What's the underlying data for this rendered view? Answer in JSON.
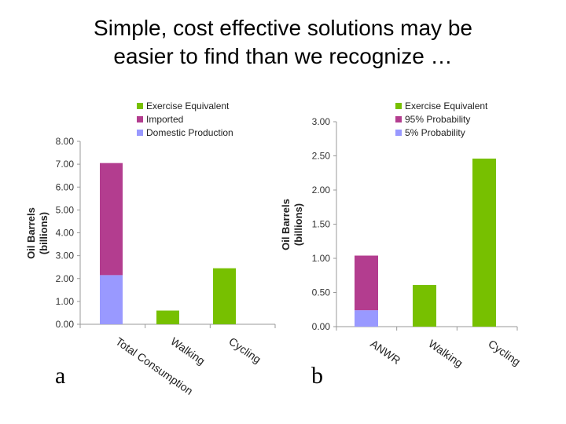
{
  "slide": {
    "title_line1": "Simple, cost effective solutions may be",
    "title_line2": "easier to find than we recognize …",
    "label_a": "a",
    "label_b": "b"
  },
  "chart_data": [
    {
      "type": "bar",
      "stacked": true,
      "ylabel_line1": "Oil Barrels",
      "ylabel_line2": "(billions)",
      "ylim": [
        0,
        8
      ],
      "yticks": [
        "0.00",
        "1.00",
        "2.00",
        "3.00",
        "4.00",
        "5.00",
        "6.00",
        "7.00",
        "8.00"
      ],
      "categories": [
        "Total Consumption",
        "Walking",
        "Cycling"
      ],
      "series": [
        {
          "name": "Domestic Production",
          "color": "#9999ff",
          "values": [
            2.15,
            0,
            0
          ]
        },
        {
          "name": "Imported",
          "color": "#b33d8f",
          "values": [
            4.9,
            0,
            0
          ]
        },
        {
          "name": "Exercise Equivalent",
          "color": "#77c000",
          "values": [
            0,
            0.6,
            2.45
          ]
        }
      ],
      "legend": [
        "Exercise Equivalent",
        "Imported",
        "Domestic Production"
      ],
      "legend_position": "top-right",
      "grid": false
    },
    {
      "type": "bar",
      "stacked": true,
      "ylabel_line1": "Oil Barrels",
      "ylabel_line2": "(billions)",
      "ylim": [
        0,
        3
      ],
      "yticks": [
        "0.00",
        "0.50",
        "1.00",
        "1.50",
        "2.00",
        "2.50",
        "3.00"
      ],
      "categories": [
        "ANWR",
        "Walking",
        "Cycling"
      ],
      "series": [
        {
          "name": "5% Probability",
          "color": "#9999ff",
          "values": [
            0.24,
            0,
            0
          ]
        },
        {
          "name": "95% Probability",
          "color": "#b33d8f",
          "values": [
            0.8,
            0,
            0
          ]
        },
        {
          "name": "Exercise Equivalent",
          "color": "#77c000",
          "values": [
            0,
            0.61,
            2.46
          ]
        }
      ],
      "legend": [
        "Exercise Equivalent",
        "95% Probability",
        "5% Probability"
      ],
      "legend_position": "top-right",
      "grid": false
    }
  ]
}
